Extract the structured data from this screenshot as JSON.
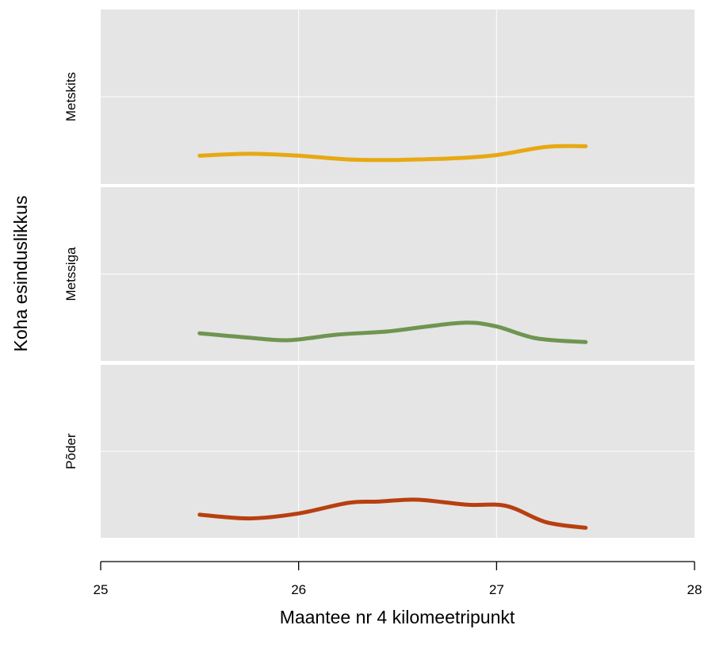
{
  "chart_data": {
    "type": "line",
    "xlabel": "Maantee nr 4 kilomeetripunkt",
    "ylabel": "Koha esinduslikkus",
    "xlim": [
      25,
      28
    ],
    "xticks": [
      "25",
      "26",
      "27",
      "28"
    ],
    "grid": true,
    "layout": "three vertically stacked facet panels sharing the x axis",
    "series": [
      {
        "name": "Metskits",
        "color": "#e7a812",
        "x": [
          25.5,
          25.75,
          26.0,
          26.25,
          26.45,
          26.6,
          26.8,
          27.0,
          27.25,
          27.45
        ],
        "y": [
          0.68,
          0.74,
          0.68,
          0.56,
          0.54,
          0.56,
          0.6,
          0.7,
          0.96,
          0.98
        ]
      },
      {
        "name": "Metssiga",
        "color": "#6f9551",
        "x": [
          25.5,
          25.75,
          25.95,
          26.2,
          26.45,
          26.65,
          26.85,
          27.0,
          27.2,
          27.45
        ],
        "y": [
          0.66,
          0.52,
          0.44,
          0.62,
          0.72,
          0.88,
          1.0,
          0.88,
          0.5,
          0.38
        ]
      },
      {
        "name": "Põder",
        "color": "#b83f10",
        "x": [
          25.5,
          25.75,
          26.0,
          26.25,
          26.4,
          26.6,
          26.85,
          27.05,
          27.25,
          27.45
        ],
        "y": [
          0.52,
          0.4,
          0.56,
          0.9,
          0.94,
          1.0,
          0.84,
          0.8,
          0.28,
          0.1
        ]
      }
    ]
  }
}
